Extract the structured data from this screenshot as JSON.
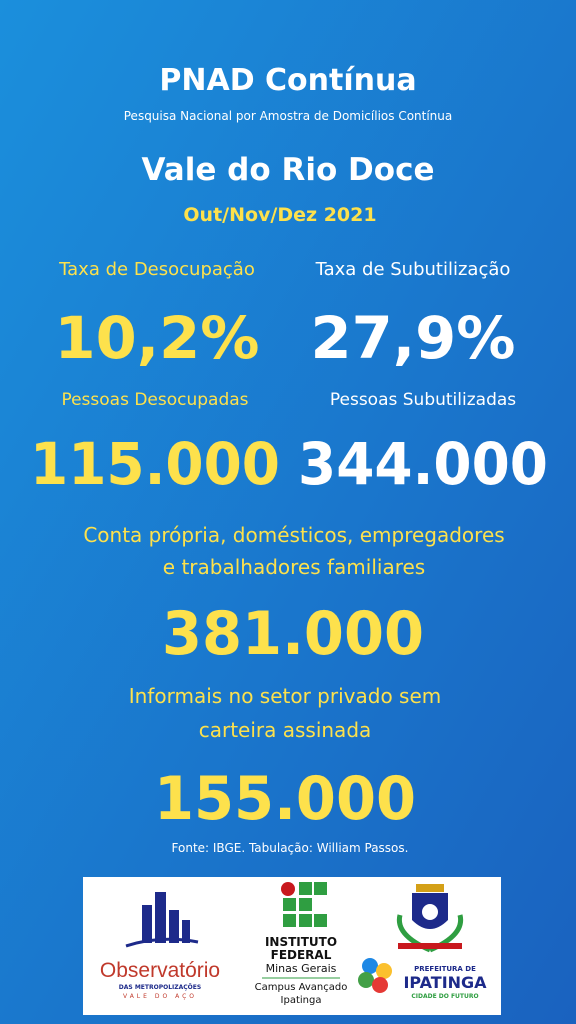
{
  "header": {
    "title": "PNAD Contínua",
    "subtitle": "Pesquisa Nacional por Amostra de Domicílios Contínua",
    "region": "Vale do Rio Doce",
    "period": "Out/Nov/Dez 2021"
  },
  "rates": [
    {
      "label": "Taxa de Desocupação",
      "value": "10,2%"
    },
    {
      "label": "Taxa de Subutilização",
      "value": "27,9%"
    }
  ],
  "counts": [
    {
      "label": "Pessoas Desocupadas",
      "value": "115.000"
    },
    {
      "label": "Pessoas Subutilizadas",
      "value": "344.000"
    }
  ],
  "groups": [
    {
      "label_lines": [
        "Conta própria, domésticos, empregadores",
        "e trabalhadores familiares"
      ],
      "value": "381.000"
    },
    {
      "label_lines": [
        "Informais no setor privado sem",
        "carteira assinada"
      ],
      "value": "155.000"
    }
  ],
  "source": "Fonte: IBGE. Tabulação: William Passos.",
  "logos": {
    "observatorio": {
      "name": "Observatório",
      "line1": "DAS METROPOLIZAÇÕES",
      "line2": "VALE DO AÇO"
    },
    "instituto": {
      "name_lines": [
        "INSTITUTO",
        "FEDERAL"
      ],
      "state": "Minas Gerais",
      "campus_lines": [
        "Campus Avançado",
        "Ipatinga"
      ]
    },
    "prefeitura": {
      "line1": "PREFEITURA DE",
      "name": "IPATINGA",
      "slogan": "CIDADE DO FUTURO"
    }
  }
}
